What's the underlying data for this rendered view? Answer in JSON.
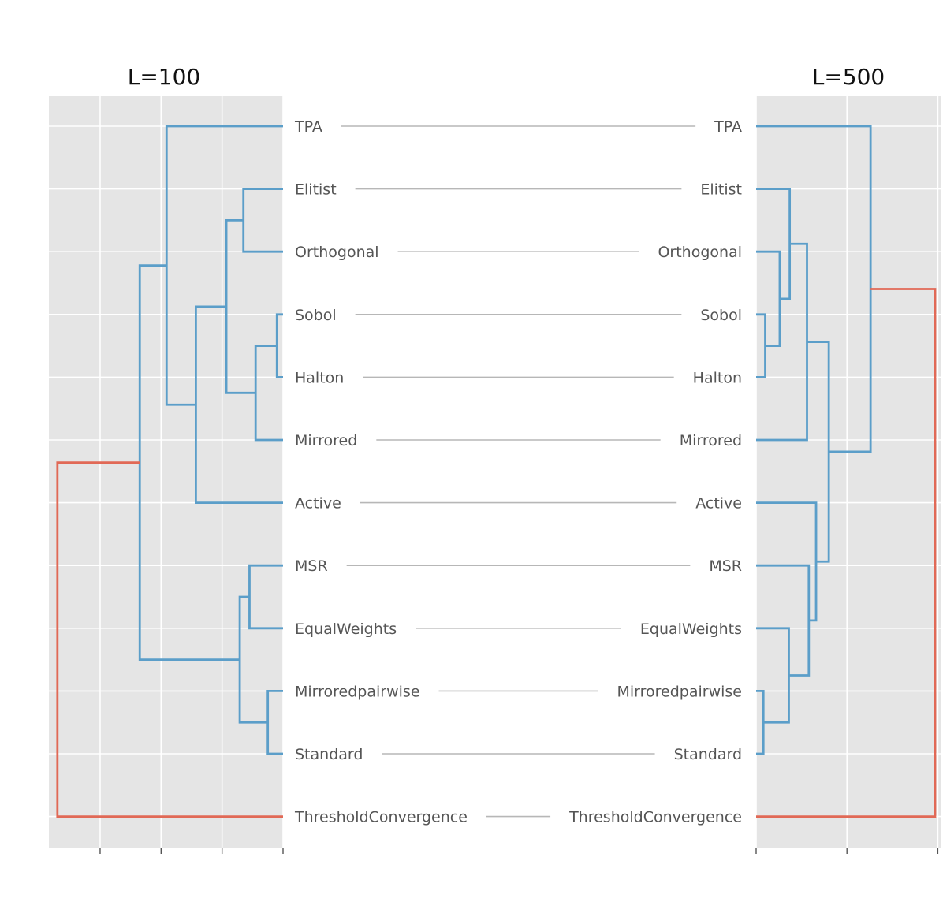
{
  "chart_data": {
    "type": "tanglegram",
    "leaves": [
      "TPA",
      "Elitist",
      "Orthogonal",
      "Sobol",
      "Halton",
      "Mirrored",
      "Active",
      "MSR",
      "EqualWeights",
      "Mirroredpairwise",
      "Standard",
      "ThresholdConvergence"
    ],
    "colors": {
      "cluster": "#5b9ec9",
      "root": "#e16956",
      "panel": "#e5e5e5",
      "grid": "#ffffff",
      "connector": "#b7b7b7"
    },
    "left": {
      "title": "L=100",
      "orientation": "grows-left",
      "order": [
        "TPA",
        "Elitist",
        "Orthogonal",
        "Sobol",
        "Halton",
        "Mirrored",
        "Active",
        "MSR",
        "EqualWeights",
        "Mirroredpairwise",
        "Standard",
        "ThresholdConvergence"
      ],
      "xlim": [
        3.84,
        0
      ],
      "ticks": [
        0,
        1,
        2,
        3
      ],
      "merges": [
        {
          "a": "Sobol",
          "b": "Halton",
          "h": 0.1,
          "color": "cluster"
        },
        {
          "a": "Elitist",
          "b": "Orthogonal",
          "h": 0.65,
          "color": "cluster"
        },
        {
          "a": "MSR",
          "b": "EqualWeights",
          "h": 0.55,
          "color": "cluster"
        },
        {
          "a": "Mirroredpairwise",
          "b": "Standard",
          "h": 0.25,
          "color": "cluster"
        },
        {
          "a": 0,
          "b": "Mirrored",
          "h": 0.45,
          "color": "cluster"
        },
        {
          "a": 1,
          "b": 4,
          "h": 0.93,
          "color": "cluster"
        },
        {
          "a": 5,
          "b": "Active",
          "h": 1.43,
          "color": "cluster"
        },
        {
          "a": "TPA",
          "b": 6,
          "h": 1.91,
          "color": "cluster"
        },
        {
          "a": 2,
          "b": 3,
          "h": 0.71,
          "color": "cluster"
        },
        {
          "a": 7,
          "b": 8,
          "h": 2.35,
          "color": "cluster"
        },
        {
          "a": 9,
          "b": "ThresholdConvergence",
          "h": 3.7,
          "color": "root"
        }
      ]
    },
    "right": {
      "title": "L=500",
      "orientation": "grows-right",
      "order": [
        "TPA",
        "Elitist",
        "Orthogonal",
        "Sobol",
        "Halton",
        "Mirrored",
        "Active",
        "MSR",
        "EqualWeights",
        "Mirroredpairwise",
        "Standard",
        "ThresholdConvergence"
      ],
      "xlim": [
        0,
        2.04
      ],
      "ticks": [
        0,
        1,
        2
      ],
      "merges": [
        {
          "a": "Sobol",
          "b": "Halton",
          "h": 0.1,
          "color": "cluster"
        },
        {
          "a": "Orthogonal",
          "b": 0,
          "h": 0.26,
          "color": "cluster"
        },
        {
          "a": "Elitist",
          "b": 1,
          "h": 0.37,
          "color": "cluster"
        },
        {
          "a": 2,
          "b": "Mirrored",
          "h": 0.56,
          "color": "cluster"
        },
        {
          "a": "Mirroredpairwise",
          "b": "Standard",
          "h": 0.08,
          "color": "cluster"
        },
        {
          "a": "EqualWeights",
          "b": 4,
          "h": 0.36,
          "color": "cluster"
        },
        {
          "a": "MSR",
          "b": 5,
          "h": 0.58,
          "color": "cluster"
        },
        {
          "a": "Active",
          "b": 6,
          "h": 0.66,
          "color": "cluster"
        },
        {
          "a": 3,
          "b": 7,
          "h": 0.8,
          "color": "cluster"
        },
        {
          "a": "TPA",
          "b": 8,
          "h": 1.26,
          "color": "cluster"
        },
        {
          "a": 9,
          "b": "ThresholdConvergence",
          "h": 1.97,
          "color": "root"
        }
      ]
    }
  }
}
